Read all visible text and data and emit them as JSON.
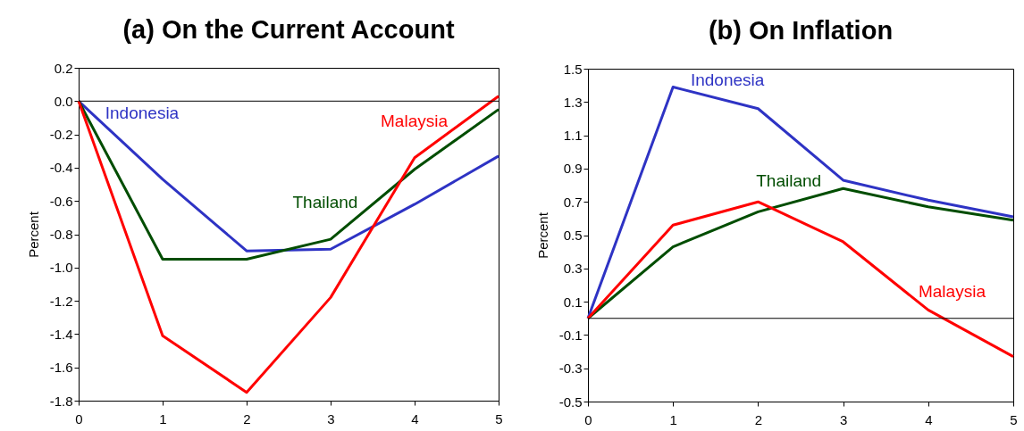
{
  "chart_data": [
    {
      "type": "line",
      "title": "(a) On the Current Account",
      "ylabel": "Percent",
      "x": [
        0,
        1,
        2,
        3,
        4,
        5
      ],
      "series": [
        {
          "name": "Indonesia",
          "color": "#2e33c4",
          "values": [
            0,
            -0.47,
            -0.9,
            -0.89,
            -0.62,
            -0.33
          ]
        },
        {
          "name": "Thailand",
          "color": "#004d00",
          "values": [
            0,
            -0.95,
            -0.95,
            -0.83,
            -0.41,
            -0.05
          ]
        },
        {
          "name": "Malaysia",
          "color": "#ff0000",
          "values": [
            0,
            -1.41,
            -1.75,
            -1.18,
            -0.34,
            0.03
          ]
        }
      ],
      "xlim": [
        0,
        5
      ],
      "xticks": [
        0,
        1,
        2,
        3,
        4,
        5
      ],
      "ylim": [
        -1.8,
        0.2
      ],
      "yticks": [
        0.2,
        {
          "value": 0,
          "label": "0.0"
        },
        -0.2,
        -0.4,
        -0.6,
        -0.8,
        {
          "value": -1,
          "label": "-1.0"
        },
        -1.2,
        -1.4,
        -1.6,
        -1.8
      ],
      "ref_lines": [
        {
          "axis": "y",
          "value": 0,
          "color": "#000000"
        }
      ],
      "line_style": "solid"
    },
    {
      "type": "line",
      "title": "(b) On Inflation",
      "ylabel": "Percent",
      "x": [
        0,
        1,
        2,
        3,
        4,
        5
      ],
      "series": [
        {
          "name": "Indonesia",
          "color": "#2e33c4",
          "values": [
            0,
            1.39,
            1.26,
            0.83,
            0.71,
            0.61
          ]
        },
        {
          "name": "Thailand",
          "color": "#004d00",
          "values": [
            0,
            0.43,
            0.64,
            0.78,
            0.67,
            0.59
          ]
        },
        {
          "name": "Malaysia",
          "color": "#ff0000",
          "values": [
            0,
            0.56,
            0.7,
            0.46,
            0.05,
            -0.23
          ]
        }
      ],
      "xlim": [
        0,
        5
      ],
      "xticks": [
        0,
        1,
        2,
        3,
        4,
        5
      ],
      "ylim": [
        -0.5,
        1.5
      ],
      "yticks": [
        -0.5,
        -0.3,
        -0.1,
        0.1,
        0.3,
        0.5,
        0.7,
        0.9,
        1.1,
        1.3,
        1.5
      ],
      "ref_lines": [
        {
          "axis": "y",
          "value": 0,
          "color": "#000000"
        }
      ],
      "line_style": "solid"
    }
  ]
}
